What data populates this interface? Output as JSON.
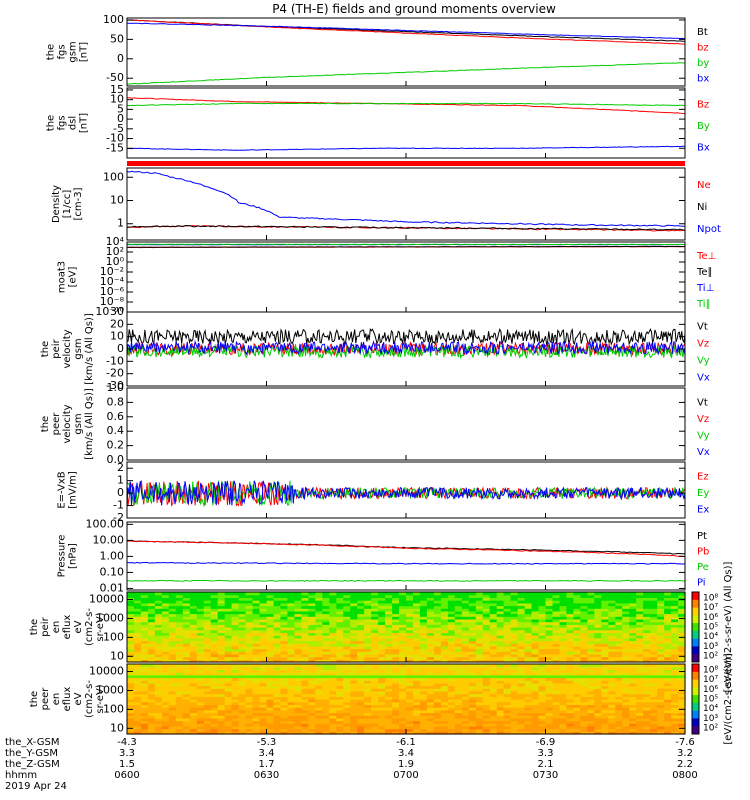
{
  "title": "P4 (TH-E) fields and ground moments overview",
  "colors": {
    "black": "#000000",
    "red": "#ff0000",
    "green": "#00cc00",
    "blue": "#0000ff",
    "frame": "#000000"
  },
  "chart_data": [
    {
      "type": "line",
      "panel": "fgs_gsm",
      "ylabel_lines": [
        "the",
        "fgs",
        "gsm",
        "[nT]"
      ],
      "ylim": [
        -70,
        105
      ],
      "yticks": [
        {
          "v": 100,
          "label": "100"
        },
        {
          "v": 50,
          "label": "50"
        },
        {
          "v": 0,
          "label": "0"
        },
        {
          "v": -50,
          "label": "-50"
        }
      ],
      "series": [
        {
          "name": "Bt",
          "color": "black",
          "x": [
            0,
            0.25,
            0.5,
            0.75,
            1
          ],
          "y": [
            100,
            83,
            70,
            57,
            45
          ]
        },
        {
          "name": "bz",
          "color": "red",
          "x": [
            0,
            0.25,
            0.5,
            0.75,
            1
          ],
          "y": [
            100,
            82,
            66,
            51,
            38
          ]
        },
        {
          "name": "by",
          "color": "green",
          "x": [
            0,
            0.25,
            0.5,
            0.75,
            1
          ],
          "y": [
            -65,
            -48,
            -35,
            -22,
            -10
          ]
        },
        {
          "name": "bx",
          "color": "blue",
          "x": [
            0,
            0.25,
            0.5,
            0.75,
            1
          ],
          "y": [
            92,
            84,
            73,
            62,
            52
          ]
        }
      ]
    },
    {
      "type": "line",
      "panel": "fgs_dsl",
      "ylabel_lines": [
        "the",
        "fgs",
        "dsl",
        "[nT]"
      ],
      "ylim": [
        -20,
        16
      ],
      "yticks": [
        {
          "v": 15,
          "label": "15"
        },
        {
          "v": 10,
          "label": "10"
        },
        {
          "v": 5,
          "label": "5"
        },
        {
          "v": 0,
          "label": "0"
        },
        {
          "v": -5,
          "label": "-5"
        },
        {
          "v": -10,
          "label": "-10"
        },
        {
          "v": -15,
          "label": "-15"
        }
      ],
      "series": [
        {
          "name": "Bz",
          "color": "red",
          "x": [
            0,
            0.2,
            0.45,
            0.7,
            1
          ],
          "y": [
            11,
            9,
            8,
            7,
            3
          ]
        },
        {
          "name": "By",
          "color": "green",
          "x": [
            0,
            0.2,
            0.45,
            0.7,
            1
          ],
          "y": [
            7,
            8,
            8,
            8,
            7
          ]
        },
        {
          "name": "Bx",
          "color": "blue",
          "x": [
            0,
            0.2,
            0.45,
            0.7,
            1
          ],
          "y": [
            -15,
            -16,
            -15,
            -15,
            -14
          ]
        }
      ]
    },
    {
      "type": "line",
      "panel": "density",
      "ylabel_lines": [
        "Density",
        "[1/cc]",
        "[cm-3]"
      ],
      "ylog": true,
      "ylim": [
        0.2,
        250
      ],
      "yticks": [
        {
          "v": 100,
          "label": "100"
        },
        {
          "v": 10,
          "label": "10"
        },
        {
          "v": 1,
          "label": "1"
        }
      ],
      "series": [
        {
          "name": "Ne",
          "color": "red",
          "x": [
            0,
            0.1,
            0.4,
            1
          ],
          "y": [
            0.7,
            0.8,
            0.7,
            0.5
          ]
        },
        {
          "name": "Ni",
          "color": "black",
          "x": [
            0,
            0.1,
            0.4,
            1
          ],
          "y": [
            0.75,
            0.8,
            0.7,
            0.55
          ]
        },
        {
          "name": "Npot",
          "color": "blue",
          "x": [
            0,
            0.05,
            0.08,
            0.14,
            0.2,
            0.27,
            0.3,
            0.5,
            0.8,
            1
          ],
          "y": [
            180,
            150,
            100,
            40,
            8,
            2,
            1.8,
            1.2,
            0.9,
            0.8
          ]
        }
      ]
    },
    {
      "type": "line",
      "panel": "temperature",
      "ylabel_lines": [
        "moat3",
        "[eV]"
      ],
      "ylog": true,
      "ylim": [
        1e-10,
        10000.0
      ],
      "yticks": [
        {
          "v": 10000,
          "label": "10⁴"
        },
        {
          "v": 100,
          "label": "10²"
        },
        {
          "v": 1,
          "label": "10⁰"
        },
        {
          "v": 0.01,
          "label": "10⁻²"
        },
        {
          "v": 0.0001,
          "label": "10⁻⁴"
        },
        {
          "v": 1e-06,
          "label": "10⁻⁶"
        },
        {
          "v": 1e-08,
          "label": "10⁻⁸"
        },
        {
          "v": 1e-10,
          "label": "10⁻¹⁰"
        }
      ],
      "series": [
        {
          "name": "Te⊥",
          "color": "red",
          "x": [
            0,
            1
          ],
          "y": [
            800,
            1200
          ]
        },
        {
          "name": "Te∥",
          "color": "black",
          "x": [
            0,
            1
          ],
          "y": [
            900,
            1300
          ]
        },
        {
          "name": "Ti⊥",
          "color": "blue",
          "x": [
            0,
            1
          ],
          "y": [
            3000,
            3000
          ]
        },
        {
          "name": "Ti∥",
          "color": "green",
          "x": [
            0,
            1
          ],
          "y": [
            3500,
            3200
          ]
        }
      ]
    },
    {
      "type": "line",
      "panel": "peir_velocity",
      "ylabel_lines": [
        "the",
        "peir",
        "velocity",
        "gsm",
        "[km/s (All Qs)]"
      ],
      "ylim": [
        -30,
        30
      ],
      "yticks": [
        {
          "v": 30,
          "label": "30"
        },
        {
          "v": 20,
          "label": "20"
        },
        {
          "v": 10,
          "label": "10"
        },
        {
          "v": 0,
          "label": "0"
        },
        {
          "v": -10,
          "label": "-10"
        },
        {
          "v": -20,
          "label": "-20"
        },
        {
          "v": -30,
          "label": "-30"
        }
      ],
      "series": [
        {
          "name": "Vt",
          "color": "black",
          "x": [
            0,
            1
          ],
          "y": [
            10,
            10
          ]
        },
        {
          "name": "Vz",
          "color": "red",
          "x": [
            0,
            1
          ],
          "y": [
            0,
            0
          ]
        },
        {
          "name": "Vy",
          "color": "green",
          "x": [
            0,
            1
          ],
          "y": [
            -2,
            -2
          ]
        },
        {
          "name": "Vx",
          "color": "blue",
          "x": [
            0,
            1
          ],
          "y": [
            1,
            1
          ]
        }
      ]
    },
    {
      "type": "line",
      "panel": "peer_velocity",
      "ylabel_lines": [
        "the",
        "peer",
        "velocity",
        "gsm",
        "[km/s (All Qs)]"
      ],
      "ylim": [
        0,
        1
      ],
      "yticks": [
        {
          "v": 1.0,
          "label": "1.0"
        },
        {
          "v": 0.8,
          "label": "0.8"
        },
        {
          "v": 0.6,
          "label": "0.6"
        },
        {
          "v": 0.4,
          "label": "0.4"
        },
        {
          "v": 0.2,
          "label": "0.2"
        },
        {
          "v": 0.0,
          "label": "0.0"
        }
      ],
      "series": [
        {
          "name": "Vt",
          "color": "black",
          "x": [],
          "y": []
        },
        {
          "name": "Vz",
          "color": "red",
          "x": [],
          "y": []
        },
        {
          "name": "Vy",
          "color": "green",
          "x": [],
          "y": []
        },
        {
          "name": "Vx",
          "color": "blue",
          "x": [],
          "y": []
        }
      ]
    },
    {
      "type": "line",
      "panel": "efield",
      "ylabel_lines": [
        "E=-VxB",
        "[mV/m]"
      ],
      "ylim": [
        -2,
        2.5
      ],
      "yticks": [
        {
          "v": 2,
          "label": "2"
        },
        {
          "v": 1,
          "label": "1"
        },
        {
          "v": 0,
          "label": "0"
        },
        {
          "v": -1,
          "label": "-1"
        },
        {
          "v": -2,
          "label": "-2"
        }
      ],
      "series": [
        {
          "name": "Ez",
          "color": "red",
          "x": [
            0,
            1
          ],
          "y": [
            0,
            0
          ]
        },
        {
          "name": "Ey",
          "color": "green",
          "x": [
            0,
            1
          ],
          "y": [
            0,
            0
          ]
        },
        {
          "name": "Ex",
          "color": "blue",
          "x": [
            0,
            1
          ],
          "y": [
            0,
            0
          ]
        }
      ]
    },
    {
      "type": "line",
      "panel": "pressure",
      "ylabel_lines": [
        "Pressure",
        "[nPa]"
      ],
      "ylog": true,
      "ylim": [
        0.008,
        140
      ],
      "yticks": [
        {
          "v": 100,
          "label": "100.00"
        },
        {
          "v": 10,
          "label": "10.00"
        },
        {
          "v": 1,
          "label": "1.00"
        },
        {
          "v": 0.1,
          "label": "0.10"
        },
        {
          "v": 0.01,
          "label": "0.01"
        }
      ],
      "series": [
        {
          "name": "Pt",
          "color": "black",
          "x": [
            0,
            0.5,
            1
          ],
          "y": [
            9,
            3.5,
            1.4
          ]
        },
        {
          "name": "Pb",
          "color": "red",
          "x": [
            0,
            0.5,
            1
          ],
          "y": [
            9,
            3.2,
            1
          ]
        },
        {
          "name": "Pe",
          "color": "green",
          "x": [
            0,
            0.5,
            1
          ],
          "y": [
            0.03,
            0.03,
            0.03
          ]
        },
        {
          "name": "Pi",
          "color": "blue",
          "x": [
            0,
            0.5,
            1
          ],
          "y": [
            0.4,
            0.35,
            0.35
          ]
        }
      ]
    },
    {
      "type": "heatmap",
      "panel": "peir_eflux",
      "ylabel_lines": [
        "the",
        "peir",
        "en",
        "eflux",
        "eV",
        "(cm2-s-",
        "sr-eV)"
      ],
      "ylog": true,
      "ylim": [
        5,
        25000
      ],
      "yticks": [
        {
          "v": 10000,
          "label": "10000"
        },
        {
          "v": 1000,
          "label": "1000"
        },
        {
          "v": 100,
          "label": "100"
        },
        {
          "v": 10,
          "label": "10"
        }
      ],
      "colorbar": {
        "label": "[eV/(cm2-s-sr-eV) (All Qs)]",
        "ticks": [
          "10⁸",
          "10⁷",
          "10⁶",
          "10⁵",
          "10⁴",
          "10³",
          "10²"
        ]
      }
    },
    {
      "type": "heatmap",
      "panel": "peer_eflux",
      "ylabel_lines": [
        "the",
        "peer",
        "en",
        "eflux",
        "eV",
        "(cm2-s-",
        "sr-eV)"
      ],
      "ylog": true,
      "ylim": [
        5,
        25000
      ],
      "yticks": [
        {
          "v": 10000,
          "label": "10000"
        },
        {
          "v": 1000,
          "label": "1000"
        },
        {
          "v": 100,
          "label": "100"
        },
        {
          "v": 10,
          "label": "10"
        }
      ],
      "colorbar": {
        "label": "[eV/(cm2-s-sr-eV)]",
        "ticks": [
          "10⁸",
          "10⁷",
          "10⁶",
          "10⁵",
          "10⁴",
          "10³",
          "10²"
        ]
      }
    }
  ],
  "xaxis": {
    "rows": [
      {
        "label": "the_X-GSM",
        "values": [
          "-4.3",
          "-5.3",
          "-6.1",
          "-6.9",
          "-7.6"
        ]
      },
      {
        "label": "the_Y-GSM",
        "values": [
          "3.3",
          "3.4",
          "3.4",
          "3.3",
          "3.2"
        ]
      },
      {
        "label": "the_Z-GSM",
        "values": [
          "1.5",
          "1.7",
          "1.9",
          "2.1",
          "2.2"
        ]
      },
      {
        "label": "hhmm",
        "values": [
          "0600",
          "0630",
          "0700",
          "0730",
          "0800"
        ]
      }
    ],
    "date": "2019 Apr 24"
  }
}
